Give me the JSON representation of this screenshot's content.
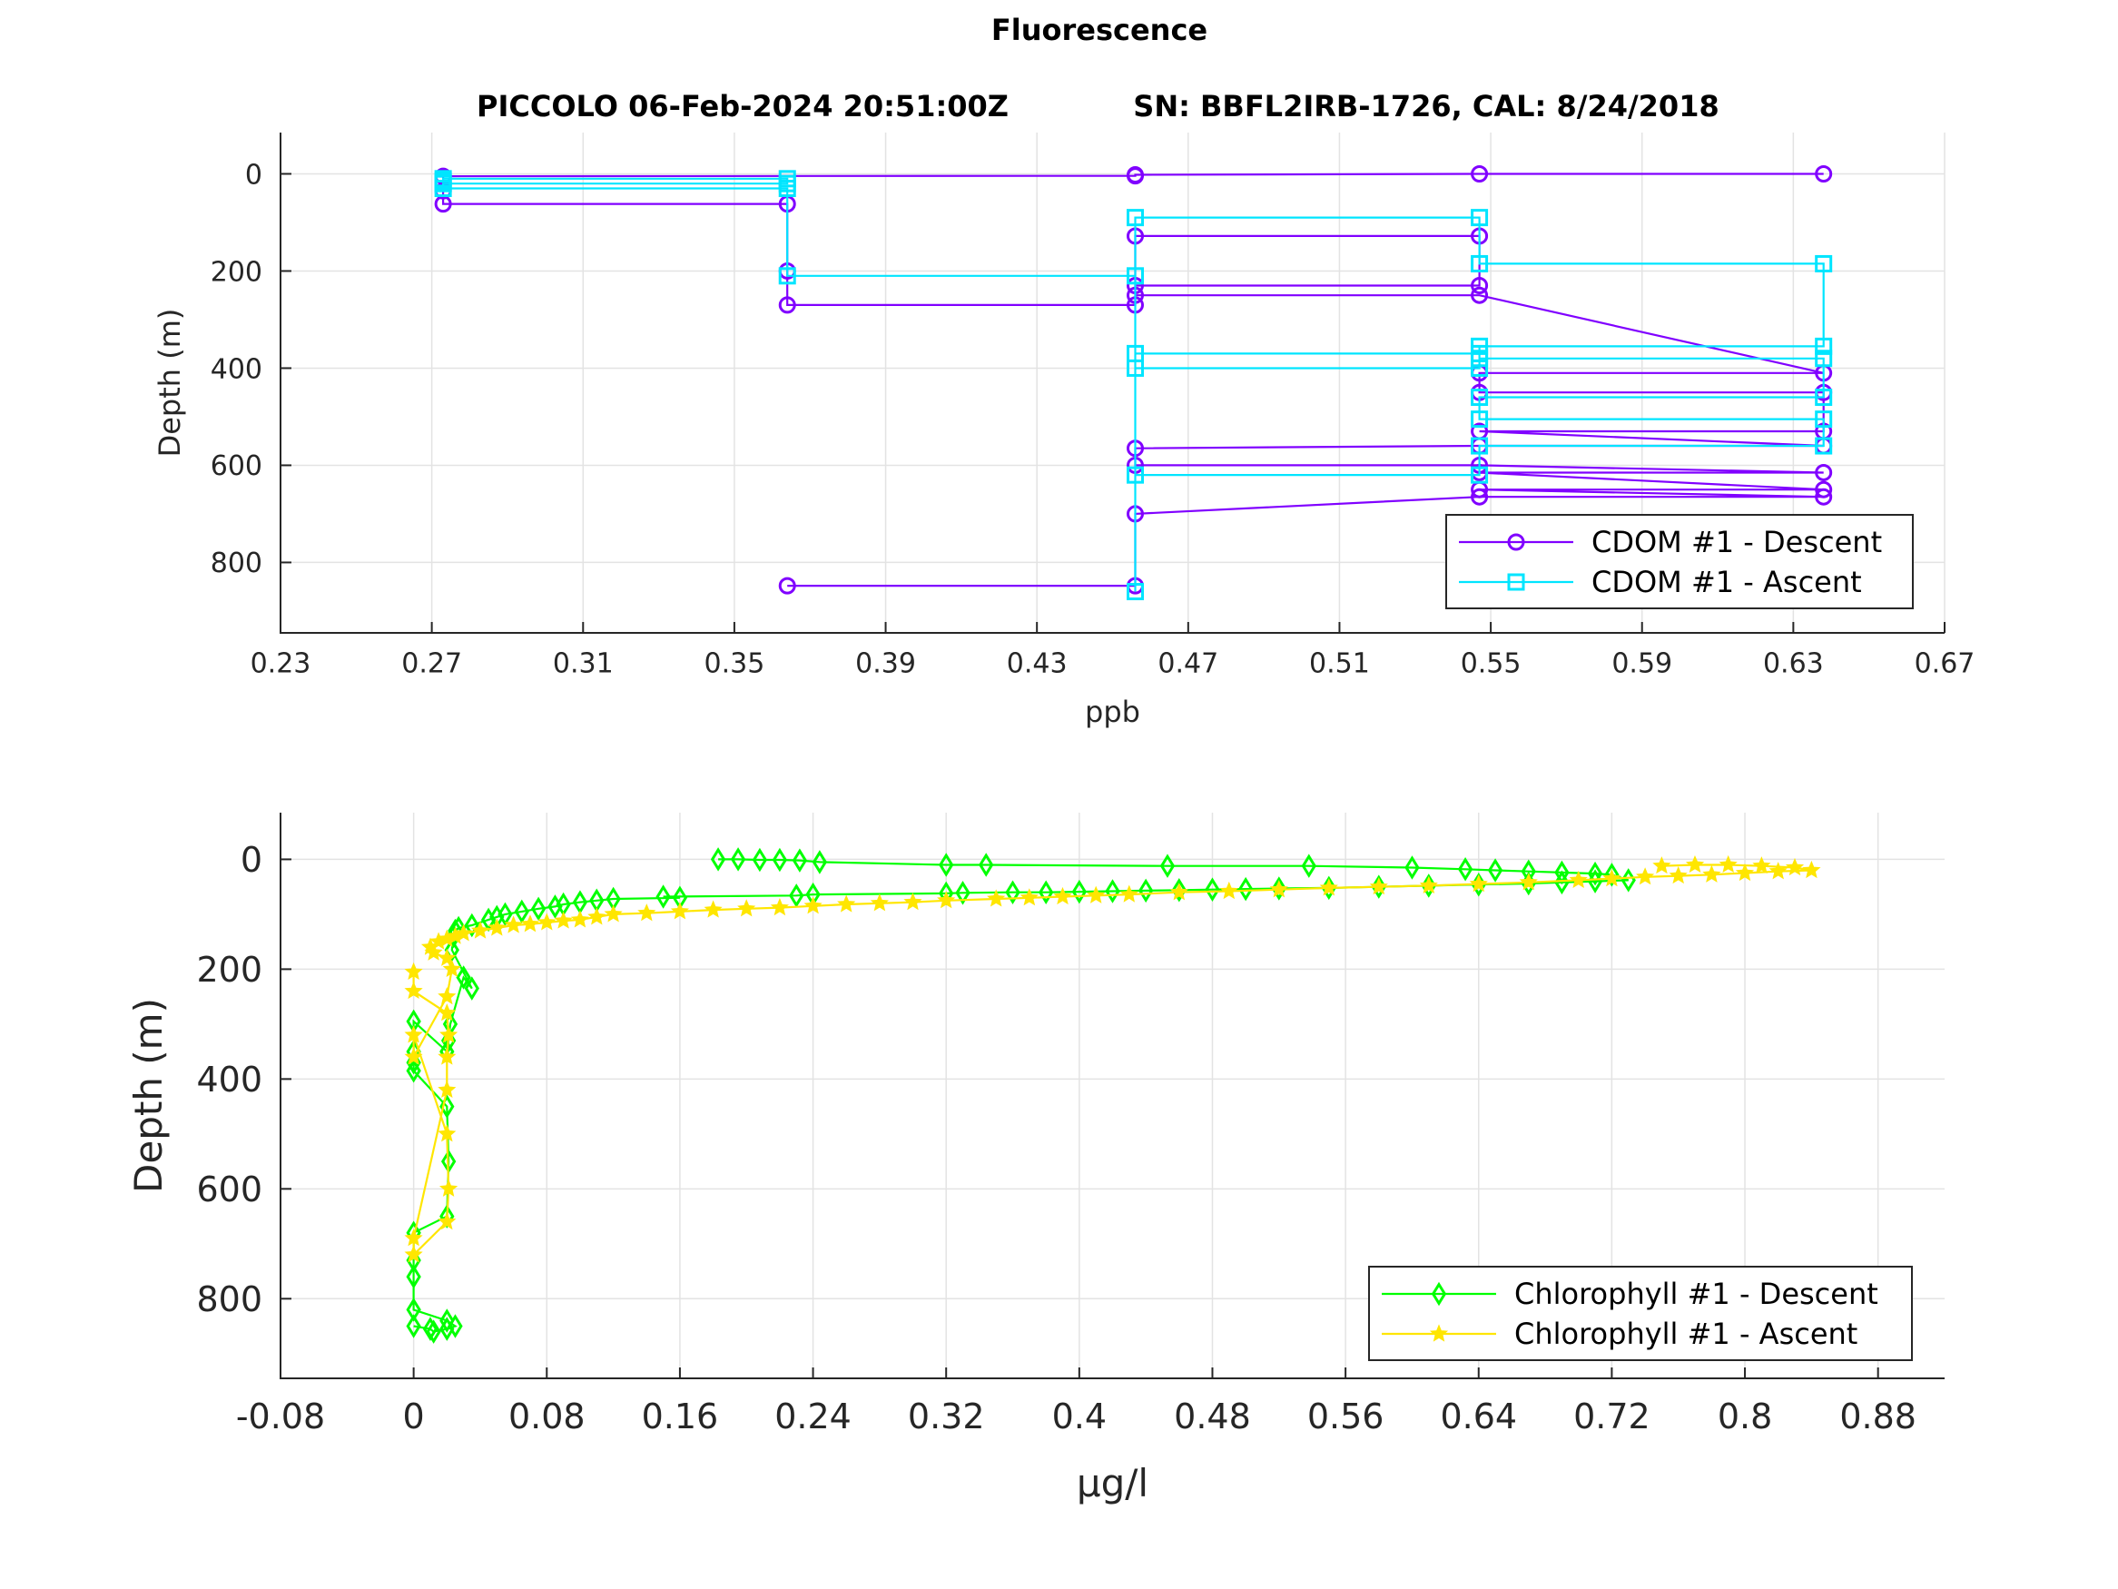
{
  "figure_title": "Fluorescence",
  "subtitle_left": "PICCOLO 06-Feb-2024 20:51:00Z",
  "subtitle_right": "SN: BBFL2IRB-1726, CAL: 8/24/2018",
  "chart_data": [
    {
      "type": "line",
      "title": "",
      "xlabel": "ppb",
      "ylabel": "Depth (m)",
      "xlim": [
        0.23,
        0.67
      ],
      "ylim": [
        -85,
        945
      ],
      "y_reversed": true,
      "grid": true,
      "legend_position": "bottom-right",
      "xticks": [
        0.23,
        0.27,
        0.31,
        0.35,
        0.39,
        0.43,
        0.47,
        0.51,
        0.55,
        0.59,
        0.63,
        0.67
      ],
      "xtick_labels": [
        "0.23",
        "0.27",
        "0.31",
        "0.35",
        "0.39",
        "0.43",
        "0.47",
        "0.51",
        "0.55",
        "0.59",
        "0.63",
        "0.67"
      ],
      "yticks": [
        0,
        200,
        400,
        600,
        800
      ],
      "ytick_labels": [
        "0",
        "200",
        "400",
        "600",
        "800"
      ],
      "series": [
        {
          "name": "CDOM #1 - Descent",
          "color": "#8000ff",
          "marker": "circle",
          "x": [
            0.638,
            0.547,
            0.456,
            0.456,
            0.273,
            0.273,
            0.273,
            0.364,
            0.364,
            0.364,
            0.456,
            0.456,
            0.547,
            0.547,
            0.456,
            0.456,
            0.547,
            0.638,
            0.547,
            0.547,
            0.638,
            0.638,
            0.547,
            0.638,
            0.547,
            0.456,
            0.456,
            0.547,
            0.638,
            0.547,
            0.638,
            0.547,
            0.638,
            0.547,
            0.456,
            0.456,
            0.364
          ],
          "y": [
            0,
            0,
            2,
            4,
            5,
            35,
            62,
            62,
            200,
            270,
            270,
            128,
            128,
            230,
            230,
            250,
            250,
            410,
            410,
            450,
            450,
            530,
            530,
            560,
            560,
            565,
            600,
            600,
            615,
            615,
            650,
            650,
            665,
            665,
            700,
            848,
            848
          ]
        },
        {
          "name": "CDOM #1 - Ascent",
          "color": "#00e5ff",
          "marker": "square",
          "x": [
            0.456,
            0.456,
            0.547,
            0.547,
            0.456,
            0.456,
            0.547,
            0.547,
            0.638,
            0.638,
            0.547,
            0.547,
            0.638,
            0.638,
            0.547,
            0.547,
            0.638,
            0.638,
            0.547,
            0.547,
            0.456,
            0.456,
            0.364,
            0.364,
            0.273,
            0.273,
            0.364,
            0.364,
            0.273,
            0.273
          ],
          "y": [
            860,
            400,
            400,
            370,
            370,
            90,
            90,
            185,
            185,
            355,
            355,
            380,
            380,
            460,
            460,
            505,
            505,
            560,
            560,
            620,
            620,
            210,
            210,
            30,
            30,
            20,
            20,
            10,
            10,
            15
          ]
        }
      ]
    },
    {
      "type": "line",
      "title": "",
      "xlabel": "μg/l",
      "ylabel": "Depth (m)",
      "xlim": [
        -0.08,
        0.92
      ],
      "ylim": [
        -85,
        945
      ],
      "y_reversed": true,
      "grid": true,
      "legend_position": "bottom-right",
      "xticks": [
        -0.08,
        0,
        0.08,
        0.16,
        0.24,
        0.32,
        0.4,
        0.48,
        0.56,
        0.64,
        0.72,
        0.8,
        0.88
      ],
      "xtick_labels": [
        "-0.08",
        "0",
        "0.08",
        "0.16",
        "0.24",
        "0.32",
        "0.4",
        "0.48",
        "0.56",
        "0.64",
        "0.72",
        "0.8",
        "0.88"
      ],
      "yticks": [
        0,
        200,
        400,
        600,
        800
      ],
      "ytick_labels": [
        "0",
        "200",
        "400",
        "600",
        "800"
      ],
      "series": [
        {
          "name": "Chlorophyll #1 - Descent",
          "color": "#00ff00",
          "marker": "diamond",
          "x": [
            0.183,
            0.195,
            0.208,
            0.22,
            0.232,
            0.244,
            0.32,
            0.344,
            0.453,
            0.538,
            0.6,
            0.632,
            0.65,
            0.67,
            0.69,
            0.71,
            0.72,
            0.73,
            0.71,
            0.69,
            0.67,
            0.64,
            0.61,
            0.58,
            0.55,
            0.52,
            0.5,
            0.48,
            0.46,
            0.44,
            0.42,
            0.4,
            0.38,
            0.36,
            0.33,
            0.32,
            0.24,
            0.23,
            0.15,
            0.16,
            0.12,
            0.11,
            0.1,
            0.09,
            0.085,
            0.075,
            0.065,
            0.055,
            0.05,
            0.045,
            0.035,
            0.027,
            0.025,
            0.024,
            0.023,
            0.035,
            0.03,
            0.022,
            0.021,
            0.02,
            0.0,
            0.0,
            0.0,
            0.0,
            0.02,
            0.021,
            0.02,
            0.0,
            0.0,
            0.0,
            0.0,
            0.02,
            0.025,
            0.02,
            0.012,
            0.01,
            0.0
          ],
          "y": [
            0,
            0,
            1,
            1,
            2,
            5,
            10,
            10,
            12,
            12,
            15,
            18,
            20,
            22,
            24,
            26,
            28,
            38,
            40,
            42,
            44,
            46,
            48,
            50,
            52,
            53,
            54,
            55,
            56,
            57,
            58,
            59,
            60,
            60,
            61,
            62,
            64,
            66,
            68,
            70,
            72,
            75,
            78,
            82,
            86,
            90,
            95,
            100,
            105,
            110,
            120,
            125,
            130,
            140,
            165,
            235,
            215,
            300,
            330,
            350,
            295,
            350,
            370,
            385,
            450,
            550,
            650,
            680,
            730,
            760,
            820,
            840,
            850,
            855,
            860,
            855,
            850
          ]
        },
        {
          "name": "Chlorophyll #1 - Ascent",
          "color": "#ffe600",
          "marker": "star",
          "x": [
            0.0,
            0.0,
            0.02,
            0.021,
            0.02,
            0.02,
            0.0,
            0.0,
            0.02,
            0.021,
            0.02,
            0.0,
            0.0,
            0.02,
            0.023,
            0.02,
            0.012,
            0.01,
            0.015,
            0.02,
            0.025,
            0.03,
            0.04,
            0.05,
            0.06,
            0.07,
            0.08,
            0.09,
            0.1,
            0.11,
            0.12,
            0.14,
            0.16,
            0.18,
            0.2,
            0.22,
            0.24,
            0.26,
            0.28,
            0.3,
            0.32,
            0.35,
            0.37,
            0.39,
            0.41,
            0.43,
            0.46,
            0.49,
            0.52,
            0.55,
            0.58,
            0.61,
            0.64,
            0.67,
            0.7,
            0.72,
            0.74,
            0.76,
            0.78,
            0.8,
            0.82,
            0.84,
            0.83,
            0.81,
            0.79,
            0.77,
            0.75
          ],
          "y": [
            205,
            240,
            280,
            320,
            360,
            420,
            690,
            720,
            660,
            600,
            500,
            320,
            360,
            250,
            200,
            180,
            170,
            160,
            150,
            145,
            140,
            135,
            130,
            125,
            120,
            118,
            115,
            112,
            110,
            105,
            100,
            98,
            95,
            92,
            90,
            88,
            85,
            82,
            80,
            78,
            75,
            72,
            70,
            68,
            66,
            64,
            60,
            58,
            55,
            52,
            50,
            48,
            45,
            42,
            38,
            35,
            32,
            30,
            28,
            25,
            22,
            20,
            15,
            12,
            10,
            10,
            12
          ]
        }
      ]
    }
  ]
}
